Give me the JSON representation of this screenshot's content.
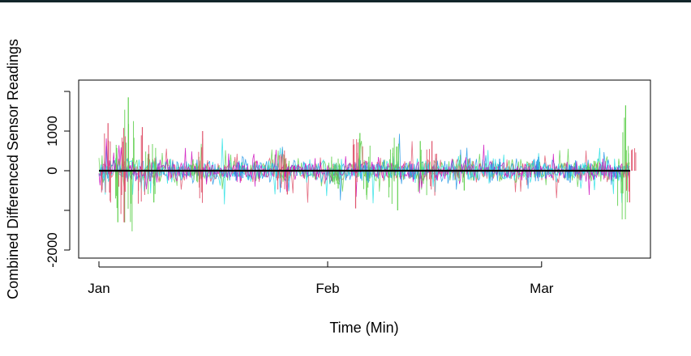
{
  "chart_data": {
    "type": "line",
    "title": "",
    "xlabel": "Time (Min)",
    "ylabel": "Combined Differenced Sensor Readings",
    "x_range": [
      "2000-01-01",
      "2000-03-13"
    ],
    "x_ticks": [
      {
        "label": "Jan",
        "date": "2000-01-01"
      },
      {
        "label": "Feb",
        "date": "2000-02-01"
      },
      {
        "label": "Mar",
        "date": "2000-03-01"
      }
    ],
    "y_ticks": [
      -2000,
      0,
      1000
    ],
    "ylim": [
      -2200,
      2200
    ],
    "grid": false,
    "legend": "none",
    "series_colors": [
      "#000000",
      "#df536b",
      "#61d04f",
      "#2297e6",
      "#28e2e5",
      "#cd0bbc",
      "#f5c710",
      "#9e9e9e"
    ],
    "series": [
      {
        "color": "#000000",
        "x": [
          "2000-01-01",
          "2000-01-08",
          "2000-01-24",
          "2000-02-14",
          "2000-02-28",
          "2000-03-13"
        ],
        "y": [
          0,
          0,
          0,
          0,
          0,
          0
        ]
      },
      {
        "color": "#61d04f",
        "x": [
          "2000-01-01",
          "2000-01-03",
          "2000-01-05",
          "2000-01-08",
          "2000-01-14",
          "2000-01-26",
          "2000-02-02",
          "2000-02-06",
          "2000-02-10",
          "2000-02-14",
          "2000-02-19",
          "2000-03-08",
          "2000-03-12"
        ],
        "y": [
          0,
          -1300,
          1850,
          -800,
          350,
          400,
          -450,
          950,
          -1000,
          750,
          -500,
          250,
          1650
        ]
      },
      {
        "color": "#df536b",
        "x": [
          "2000-01-01",
          "2000-01-02",
          "2000-01-04",
          "2000-01-07",
          "2000-01-15",
          "2000-01-26",
          "2000-02-05",
          "2000-02-15",
          "2000-03-13"
        ],
        "y": [
          0,
          1200,
          -1300,
          1100,
          1000,
          -600,
          -950,
          750,
          -800
        ]
      },
      {
        "color": "#2297e6",
        "x": [
          "2000-01-20",
          "2000-02-06",
          "2000-02-12",
          "2000-02-24",
          "2000-03-01",
          "2000-03-05",
          "2000-03-11"
        ],
        "y": [
          -250,
          -300,
          -200,
          300,
          350,
          -300,
          -200
        ]
      },
      {
        "color": "#cd0bbc",
        "x": [
          "2000-01-27",
          "2000-02-05",
          "2000-02-27"
        ],
        "y": [
          -150,
          60,
          -100
        ]
      },
      {
        "color": "#28e2e5",
        "x": [
          "2000-02-11",
          "2000-03-02",
          "2000-03-07"
        ],
        "y": [
          -100,
          150,
          -100
        ]
      }
    ]
  }
}
